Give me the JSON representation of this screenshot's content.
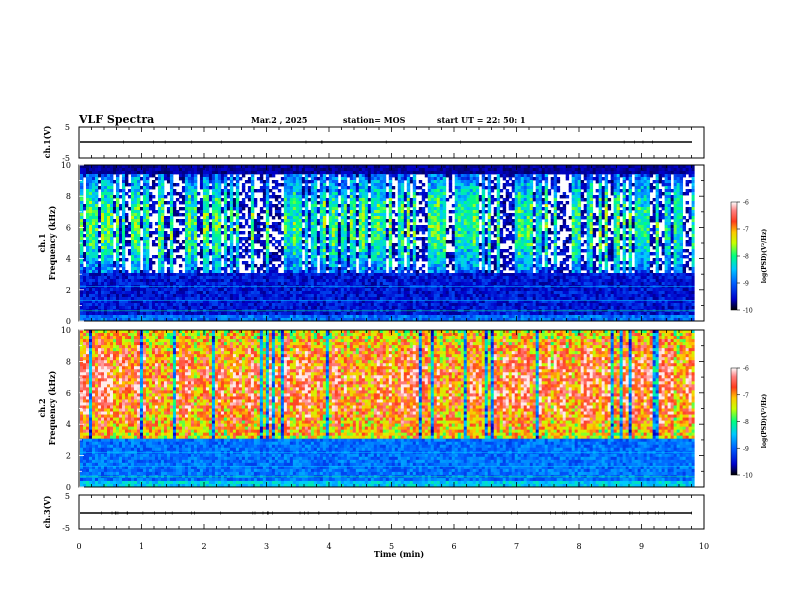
{
  "header": {
    "title": "VLF Spectra",
    "date": "Mar.2 , 2025",
    "station": "station= MOS",
    "start": "start UT = 22: 50: 1"
  },
  "colors": {
    "colormap": [
      "#1a0038",
      "#0000c8",
      "#0060ff",
      "#00c8ff",
      "#00ff80",
      "#c8ff00",
      "#ffc800",
      "#ff3c1e",
      "#ff8080",
      "#ffe0e0"
    ],
    "background": "#000000",
    "timeseries_line": "#000000"
  },
  "chart_data": [
    {
      "type": "line",
      "id": "ch1-waveform",
      "ylabel": "ch.1(V)",
      "ylim": [
        -5,
        5
      ],
      "yticks": [
        "5",
        "-5"
      ],
      "series": [
        {
          "values_constant": -0.3
        }
      ]
    },
    {
      "type": "heatmap",
      "id": "ch1-spectrogram",
      "ylabel": "ch.1\nFrequency (kHz)",
      "ylabel_lines": [
        "ch.1",
        "Frequency (kHz)"
      ],
      "ylim": [
        0,
        10
      ],
      "yticks": [
        "0",
        "2",
        "4",
        "6",
        "8",
        "10"
      ],
      "xlim": [
        0,
        9.85
      ],
      "colorbar": {
        "label": "log(PSD)(V²/Hz)",
        "range": [
          -10,
          -6
        ],
        "ticks": [
          "-6",
          "-7",
          "-8",
          "-9",
          "-10"
        ]
      },
      "band_khz": [
        3.0,
        9.4
      ],
      "typical_level": -8.6
    },
    {
      "type": "heatmap",
      "id": "ch2-spectrogram",
      "ylabel": "ch.2\nFrequency (kHz)",
      "ylabel_lines": [
        "ch.2",
        "Frequency (kHz)"
      ],
      "ylim": [
        0,
        10
      ],
      "yticks": [
        "0",
        "2",
        "4",
        "6",
        "8",
        "10"
      ],
      "xlim": [
        0,
        9.85
      ],
      "colorbar": {
        "label": "log(PSD)(V²/Hz)",
        "range": [
          -10,
          -6
        ],
        "ticks": [
          "-6",
          "-7",
          "-8",
          "-9",
          "-10"
        ]
      },
      "band_khz": [
        3.0,
        10.0
      ],
      "typical_level": -7.0
    },
    {
      "type": "line",
      "id": "ch3-waveform",
      "ylabel": "ch.3(V)",
      "ylim": [
        -5,
        5
      ],
      "yticks": [
        "5",
        "-5"
      ],
      "series": [
        {
          "values_constant": -0.5
        }
      ]
    }
  ],
  "xaxis": {
    "label": "Time (min)",
    "xlim": [
      0,
      10
    ],
    "ticks": [
      "0",
      "1",
      "2",
      "3",
      "4",
      "5",
      "6",
      "7",
      "8",
      "9",
      "10"
    ]
  }
}
